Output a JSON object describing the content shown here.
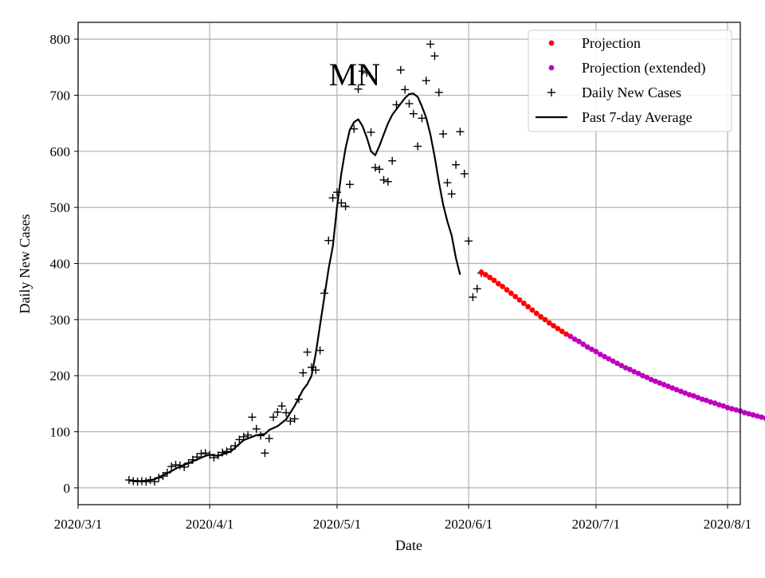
{
  "chart_data": {
    "type": "line",
    "title": "",
    "annotation": "MN",
    "xlabel": "Date",
    "ylabel": "Daily New Cases",
    "xlim": [
      "2020-03-01",
      "2020-08-04"
    ],
    "ylim": [
      -30,
      830
    ],
    "grid": true,
    "legend_position": "top-right",
    "x_ticks": [
      {
        "date": "2020-03-01",
        "label": "2020/3/1"
      },
      {
        "date": "2020-04-01",
        "label": "2020/4/1"
      },
      {
        "date": "2020-05-01",
        "label": "2020/5/1"
      },
      {
        "date": "2020-06-01",
        "label": "2020/6/1"
      },
      {
        "date": "2020-07-01",
        "label": "2020/7/1"
      },
      {
        "date": "2020-08-01",
        "label": "2020/8/1"
      }
    ],
    "y_ticks": [
      {
        "value": 0,
        "label": "0"
      },
      {
        "value": 100,
        "label": "100"
      },
      {
        "value": 200,
        "label": "200"
      },
      {
        "value": 300,
        "label": "300"
      },
      {
        "value": 400,
        "label": "400"
      },
      {
        "value": 500,
        "label": "500"
      },
      {
        "value": 600,
        "label": "600"
      },
      {
        "value": 700,
        "label": "700"
      },
      {
        "value": 800,
        "label": "800"
      }
    ],
    "series": [
      {
        "name": "Daily New Cases",
        "kind": "scatter-plus",
        "color": "#000000",
        "points": [
          [
            "2020-03-13",
            14
          ],
          [
            "2020-03-14",
            12
          ],
          [
            "2020-03-15",
            11
          ],
          [
            "2020-03-16",
            12
          ],
          [
            "2020-03-17",
            11
          ],
          [
            "2020-03-18",
            14
          ],
          [
            "2020-03-19",
            11
          ],
          [
            "2020-03-20",
            18
          ],
          [
            "2020-03-21",
            21
          ],
          [
            "2020-03-22",
            27
          ],
          [
            "2020-03-23",
            38
          ],
          [
            "2020-03-24",
            41
          ],
          [
            "2020-03-25",
            40
          ],
          [
            "2020-03-26",
            37
          ],
          [
            "2020-03-27",
            44
          ],
          [
            "2020-03-28",
            50
          ],
          [
            "2020-03-29",
            55
          ],
          [
            "2020-03-30",
            61
          ],
          [
            "2020-03-31",
            62
          ],
          [
            "2020-04-01",
            59
          ],
          [
            "2020-04-02",
            54
          ],
          [
            "2020-04-03",
            58
          ],
          [
            "2020-04-04",
            63
          ],
          [
            "2020-04-05",
            65
          ],
          [
            "2020-04-06",
            69
          ],
          [
            "2020-04-07",
            75
          ],
          [
            "2020-04-08",
            86
          ],
          [
            "2020-04-09",
            91
          ],
          [
            "2020-04-10",
            94
          ],
          [
            "2020-04-11",
            126
          ],
          [
            "2020-04-12",
            105
          ],
          [
            "2020-04-13",
            93
          ],
          [
            "2020-04-14",
            62
          ],
          [
            "2020-04-15",
            88
          ],
          [
            "2020-04-16",
            126
          ],
          [
            "2020-04-17",
            135
          ],
          [
            "2020-04-18",
            146
          ],
          [
            "2020-04-19",
            134
          ],
          [
            "2020-04-20",
            119
          ],
          [
            "2020-04-21",
            123
          ],
          [
            "2020-04-22",
            158
          ],
          [
            "2020-04-23",
            205
          ],
          [
            "2020-04-24",
            242
          ],
          [
            "2020-04-25",
            215
          ],
          [
            "2020-04-26",
            210
          ],
          [
            "2020-04-27",
            245
          ],
          [
            "2020-04-28",
            347
          ],
          [
            "2020-04-29",
            441
          ],
          [
            "2020-04-30",
            517
          ],
          [
            "2020-05-01",
            527
          ],
          [
            "2020-05-02",
            508
          ],
          [
            "2020-05-03",
            502
          ],
          [
            "2020-05-04",
            541
          ],
          [
            "2020-05-05",
            640
          ],
          [
            "2020-05-06",
            711
          ],
          [
            "2020-05-07",
            743
          ],
          [
            "2020-05-08",
            740
          ],
          [
            "2020-05-09",
            634
          ],
          [
            "2020-05-10",
            571
          ],
          [
            "2020-05-11",
            568
          ],
          [
            "2020-05-12",
            549
          ],
          [
            "2020-05-13",
            546
          ],
          [
            "2020-05-14",
            583
          ],
          [
            "2020-05-15",
            683
          ],
          [
            "2020-05-16",
            745
          ],
          [
            "2020-05-17",
            710
          ],
          [
            "2020-05-18",
            685
          ],
          [
            "2020-05-19",
            667
          ],
          [
            "2020-05-20",
            609
          ],
          [
            "2020-05-21",
            659
          ],
          [
            "2020-05-22",
            726
          ],
          [
            "2020-05-23",
            791
          ],
          [
            "2020-05-24",
            770
          ],
          [
            "2020-05-25",
            705
          ],
          [
            "2020-05-26",
            631
          ],
          [
            "2020-05-27",
            544
          ],
          [
            "2020-05-28",
            524
          ],
          [
            "2020-05-29",
            576
          ],
          [
            "2020-05-30",
            635
          ],
          [
            "2020-05-31",
            560
          ],
          [
            "2020-06-01",
            440
          ],
          [
            "2020-06-02",
            340
          ],
          [
            "2020-06-03",
            355
          ],
          [
            "2020-06-04",
            383
          ]
        ]
      },
      {
        "name": "Past 7-day Average",
        "kind": "line",
        "color": "#000000",
        "points": [
          [
            "2020-03-13",
            13
          ],
          [
            "2020-03-16",
            12
          ],
          [
            "2020-03-19",
            15
          ],
          [
            "2020-03-22",
            26
          ],
          [
            "2020-03-25",
            38
          ],
          [
            "2020-03-28",
            47
          ],
          [
            "2020-03-31",
            57
          ],
          [
            "2020-04-01",
            59
          ],
          [
            "2020-04-03",
            57
          ],
          [
            "2020-04-06",
            65
          ],
          [
            "2020-04-09",
            85
          ],
          [
            "2020-04-12",
            94
          ],
          [
            "2020-04-14",
            96
          ],
          [
            "2020-04-15",
            103
          ],
          [
            "2020-04-17",
            110
          ],
          [
            "2020-04-19",
            122
          ],
          [
            "2020-04-21",
            146
          ],
          [
            "2020-04-23",
            175
          ],
          [
            "2020-04-24",
            185
          ],
          [
            "2020-04-25",
            200
          ],
          [
            "2020-04-26",
            240
          ],
          [
            "2020-04-27",
            290
          ],
          [
            "2020-04-28",
            340
          ],
          [
            "2020-04-29",
            390
          ],
          [
            "2020-04-30",
            430
          ],
          [
            "2020-05-01",
            500
          ],
          [
            "2020-05-02",
            560
          ],
          [
            "2020-05-03",
            605
          ],
          [
            "2020-05-04",
            638
          ],
          [
            "2020-05-05",
            652
          ],
          [
            "2020-05-06",
            657
          ],
          [
            "2020-05-07",
            645
          ],
          [
            "2020-05-08",
            625
          ],
          [
            "2020-05-09",
            600
          ],
          [
            "2020-05-10",
            593
          ],
          [
            "2020-05-11",
            610
          ],
          [
            "2020-05-12",
            630
          ],
          [
            "2020-05-13",
            650
          ],
          [
            "2020-05-14",
            665
          ],
          [
            "2020-05-15",
            675
          ],
          [
            "2020-05-16",
            685
          ],
          [
            "2020-05-17",
            695
          ],
          [
            "2020-05-18",
            702
          ],
          [
            "2020-05-19",
            703
          ],
          [
            "2020-05-20",
            697
          ],
          [
            "2020-05-21",
            680
          ],
          [
            "2020-05-22",
            660
          ],
          [
            "2020-05-23",
            630
          ],
          [
            "2020-05-24",
            590
          ],
          [
            "2020-05-25",
            545
          ],
          [
            "2020-05-26",
            505
          ],
          [
            "2020-05-27",
            475
          ],
          [
            "2020-05-28",
            450
          ],
          [
            "2020-05-29",
            410
          ],
          [
            "2020-05-30",
            380
          ]
        ]
      },
      {
        "name": "Projection",
        "kind": "dots",
        "color": "#ff0000",
        "start_date": "2020-06-04",
        "values": [
          384,
          380,
          375,
          370,
          364,
          359,
          353,
          347,
          341,
          335,
          329,
          323,
          317,
          311,
          305,
          300,
          294,
          289,
          284,
          279,
          274
        ]
      },
      {
        "name": "Projection (extended)",
        "kind": "dots",
        "color": "#bf00bf",
        "start_date": "2020-06-25",
        "values": [
          270,
          265,
          261,
          256,
          251,
          247,
          243,
          238,
          234,
          230,
          226,
          222,
          218,
          214,
          211,
          207,
          204,
          200,
          197,
          193,
          190,
          187,
          184,
          181,
          178,
          175,
          172,
          169,
          166,
          164,
          161,
          158,
          156,
          153,
          151,
          148,
          146,
          143,
          141,
          139,
          137,
          134,
          132,
          130,
          128,
          126,
          124,
          122
        ]
      }
    ],
    "legend": [
      {
        "label": "Projection",
        "marker": "dot",
        "color": "#ff0000"
      },
      {
        "label": "Projection (extended)",
        "marker": "dot",
        "color": "#bf00bf"
      },
      {
        "label": "Daily New Cases",
        "marker": "plus",
        "color": "#000000"
      },
      {
        "label": "Past 7-day Average",
        "marker": "line",
        "color": "#000000"
      }
    ]
  }
}
